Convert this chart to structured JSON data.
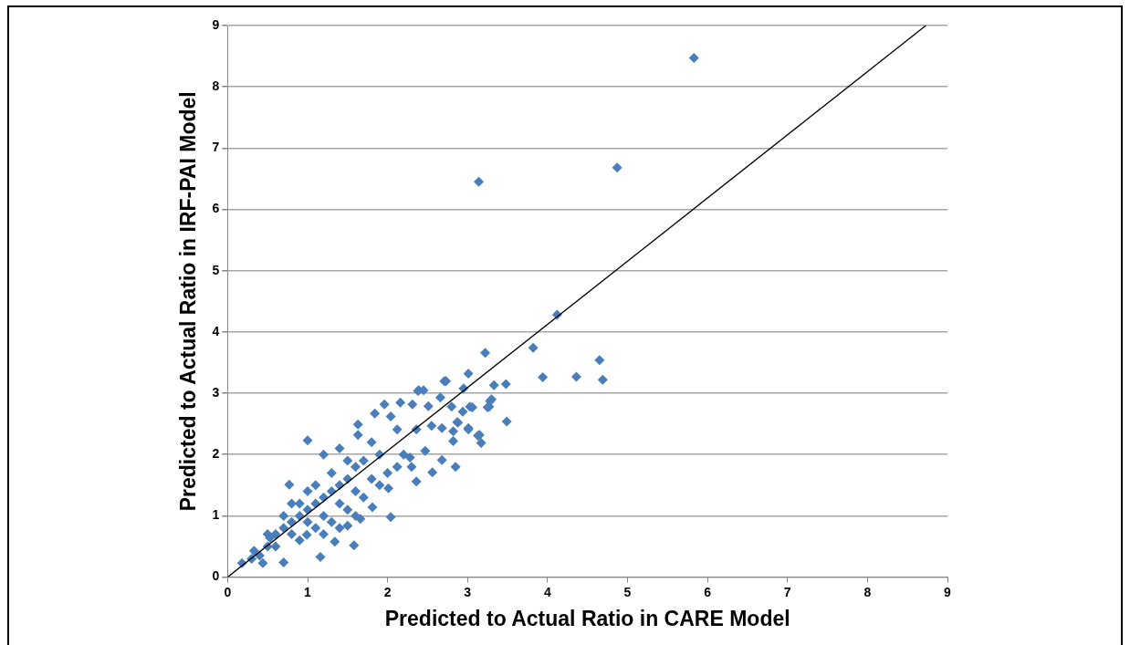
{
  "chart_data": {
    "type": "scatter",
    "xlabel": "Predicted to Actual Ratio in CARE Model",
    "ylabel": "Predicted to Actual Ratio in IRF-PAI Model",
    "xlim": [
      0,
      9
    ],
    "ylim": [
      0,
      9
    ],
    "xticks": [
      0,
      1,
      2,
      3,
      4,
      5,
      6,
      7,
      8,
      9
    ],
    "yticks": [
      0,
      1,
      2,
      3,
      4,
      5,
      6,
      7,
      8,
      9
    ],
    "grid": "y",
    "legend": false,
    "marker": "diamond",
    "series": [
      {
        "color": "#4a7ebb",
        "x": [
          5.83,
          4.87,
          3.14,
          4.12,
          3.82,
          3.22,
          4.65,
          3.94,
          4.36,
          4.69,
          3.48,
          3.33,
          3.01,
          2.73,
          2.95,
          3.25,
          3.49,
          3.13,
          3.17,
          2.82,
          2.85,
          3.28,
          2.38,
          2.45,
          0.18,
          0.7,
          1.16,
          1.58,
          2.04,
          1.0,
          0.77,
          2.68,
          2.56,
          2.36,
          2.71,
          2.39,
          1.96,
          1.84,
          1.63,
          1.63,
          2.16,
          2.31,
          2.51,
          2.66,
          2.8,
          3.06,
          2.88,
          3.01,
          2.55,
          2.36,
          2.12,
          2.04,
          2.47,
          2.28,
          2.12,
          2.01,
          1.81,
          1.66,
          1.5,
          1.34,
          0.99,
          0.44,
          0.33,
          0.53,
          0.5,
          0.6,
          0.7,
          0.8,
          0.9,
          1.0,
          1.1,
          1.2,
          1.3,
          1.4,
          1.5,
          1.6,
          1.7,
          0.6,
          0.8,
          1.0,
          1.2,
          1.4,
          1.6,
          1.8,
          0.5,
          0.7,
          0.9,
          1.1,
          1.3,
          1.5,
          1.2,
          1.4,
          1.0,
          0.8,
          1.3,
          1.5,
          1.7,
          1.9,
          1.1,
          0.9,
          1.9,
          2.0,
          1.8,
          2.2,
          2.3,
          1.6,
          1.4,
          1.2,
          0.4,
          0.3,
          3.3,
          3.27,
          3.03,
          2.94,
          2.87,
          2.68,
          3.15,
          2.82,
          3.01
        ],
        "values": [
          8.47,
          6.68,
          6.45,
          4.28,
          3.74,
          3.66,
          3.54,
          3.26,
          3.27,
          3.22,
          3.15,
          3.13,
          3.32,
          3.2,
          3.08,
          2.77,
          2.54,
          2.31,
          2.19,
          2.22,
          1.8,
          2.87,
          3.04,
          3.05,
          0.23,
          0.24,
          0.33,
          0.52,
          0.98,
          2.23,
          1.51,
          1.91,
          1.71,
          1.56,
          3.2,
          3.05,
          2.82,
          2.67,
          2.49,
          2.32,
          2.85,
          2.82,
          2.79,
          2.93,
          2.78,
          2.77,
          2.52,
          2.41,
          2.47,
          2.41,
          2.41,
          2.62,
          2.06,
          1.95,
          1.8,
          1.45,
          1.14,
          0.95,
          0.84,
          0.58,
          0.69,
          0.23,
          0.43,
          0.64,
          0.5,
          0.7,
          0.8,
          0.9,
          1.0,
          1.1,
          1.2,
          1.3,
          1.4,
          1.5,
          1.6,
          1.8,
          1.9,
          0.5,
          0.7,
          0.9,
          1.0,
          1.2,
          1.4,
          1.6,
          0.7,
          1.0,
          1.2,
          1.5,
          1.7,
          1.9,
          2.0,
          2.1,
          1.4,
          1.2,
          0.9,
          1.1,
          1.3,
          1.5,
          0.8,
          0.6,
          2.0,
          1.7,
          2.2,
          2.0,
          1.8,
          1.0,
          0.8,
          0.7,
          0.35,
          0.3,
          2.9,
          2.78,
          2.78,
          2.7,
          2.53,
          2.43,
          2.32,
          2.38,
          2.43
        ]
      },
      {
        "type": "line",
        "color": "#000000",
        "marker": "none",
        "x": [
          0,
          8.73
        ],
        "values": [
          0,
          9
        ]
      }
    ]
  }
}
